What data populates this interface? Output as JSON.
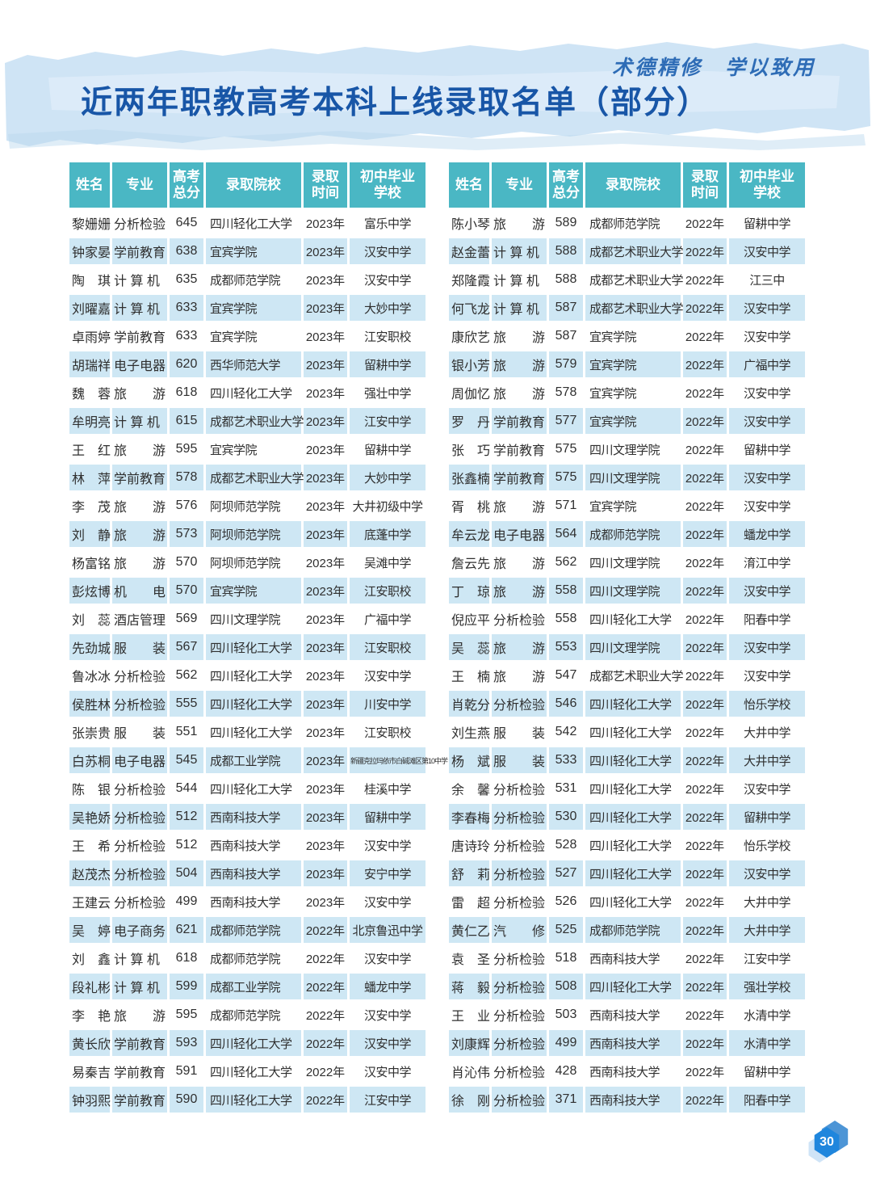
{
  "banner": {
    "slogan": "术德精修　学以致用",
    "title": "近两年职教高考本科上线录取名单（部分）"
  },
  "headers": [
    "姓名",
    "专业",
    "高考\n总分",
    "录取院校",
    "录取\n时间",
    "初中毕业\n学校"
  ],
  "left_table": {
    "rows": [
      [
        "黎姗姗",
        "分析检验",
        "645",
        "四川轻化工大学",
        "2023年",
        "富乐中学"
      ],
      [
        "钟家晏",
        "学前教育",
        "638",
        "宜宾学院",
        "2023年",
        "汉安中学"
      ],
      [
        "陶　琪",
        "计 算 机",
        "635",
        "成都师范学院",
        "2023年",
        "汉安中学"
      ],
      [
        "刘曜嘉",
        "计 算 机",
        "633",
        "宜宾学院",
        "2023年",
        "大妙中学"
      ],
      [
        "卓雨婷",
        "学前教育",
        "633",
        "宜宾学院",
        "2023年",
        "江安职校"
      ],
      [
        "胡瑞祥",
        "电子电器",
        "620",
        "西华师范大学",
        "2023年",
        "留耕中学"
      ],
      [
        "魏　蓉",
        "旅　　游",
        "618",
        "四川轻化工大学",
        "2023年",
        "强壮中学"
      ],
      [
        "牟明亮",
        "计 算 机",
        "615",
        "成都艺术职业大学",
        "2023年",
        "江安中学"
      ],
      [
        "王　红",
        "旅　　游",
        "595",
        "宜宾学院",
        "2023年",
        "留耕中学"
      ],
      [
        "林　萍",
        "学前教育",
        "578",
        "成都艺术职业大学",
        "2023年",
        "大妙中学"
      ],
      [
        "李　茂",
        "旅　　游",
        "576",
        "阿坝师范学院",
        "2023年",
        "大井初级中学"
      ],
      [
        "刘　静",
        "旅　　游",
        "573",
        "阿坝师范学院",
        "2023年",
        "底蓬中学"
      ],
      [
        "杨富铭",
        "旅　　游",
        "570",
        "阿坝师范学院",
        "2023年",
        "吴滩中学"
      ],
      [
        "彭炫博",
        "机　　电",
        "570",
        "宜宾学院",
        "2023年",
        "江安职校"
      ],
      [
        "刘　蕊",
        "酒店管理",
        "569",
        "四川文理学院",
        "2023年",
        "广福中学"
      ],
      [
        "先劲城",
        "服　　装",
        "567",
        "四川轻化工大学",
        "2023年",
        "江安职校"
      ],
      [
        "鲁冰冰",
        "分析检验",
        "562",
        "四川轻化工大学",
        "2023年",
        "汉安中学"
      ],
      [
        "侯胜林",
        "分析检验",
        "555",
        "四川轻化工大学",
        "2023年",
        "川安中学"
      ],
      [
        "张崇贵",
        "服　　装",
        "551",
        "四川轻化工大学",
        "2023年",
        "江安职校"
      ],
      [
        "白苏桐",
        "电子电器",
        "545",
        "成都工业学院",
        "2023年",
        "新疆克拉玛依市白碱滩区第10中学"
      ],
      [
        "陈　银",
        "分析检验",
        "544",
        "四川轻化工大学",
        "2023年",
        "桂溪中学"
      ],
      [
        "吴艳娇",
        "分析检验",
        "512",
        "西南科技大学",
        "2023年",
        "留耕中学"
      ],
      [
        "王　希",
        "分析检验",
        "512",
        "西南科技大学",
        "2023年",
        "汉安中学"
      ],
      [
        "赵茂杰",
        "分析检验",
        "504",
        "西南科技大学",
        "2023年",
        "安宁中学"
      ],
      [
        "王建云",
        "分析检验",
        "499",
        "西南科技大学",
        "2023年",
        "汉安中学"
      ],
      [
        "吴　婷",
        "电子商务",
        "621",
        "成都师范学院",
        "2022年",
        "北京鲁迅中学"
      ],
      [
        "刘　鑫",
        "计 算 机",
        "618",
        "成都师范学院",
        "2022年",
        "汉安中学"
      ],
      [
        "段礼彬",
        "计 算 机",
        "599",
        "成都工业学院",
        "2022年",
        "蟠龙中学"
      ],
      [
        "李　艳",
        "旅　　游",
        "595",
        "成都师范学院",
        "2022年",
        "汉安中学"
      ],
      [
        "黄长欣",
        "学前教育",
        "593",
        "四川轻化工大学",
        "2022年",
        "汉安中学"
      ],
      [
        "易秦吉",
        "学前教育",
        "591",
        "四川轻化工大学",
        "2022年",
        "汉安中学"
      ],
      [
        "钟羽熙",
        "学前教育",
        "590",
        "四川轻化工大学",
        "2022年",
        "江安中学"
      ]
    ]
  },
  "right_table": {
    "rows": [
      [
        "陈小琴",
        "旅　　游",
        "589",
        "成都师范学院",
        "2022年",
        "留耕中学"
      ],
      [
        "赵金蕾",
        "计 算 机",
        "588",
        "成都艺术职业大学",
        "2022年",
        "汉安中学"
      ],
      [
        "郑隆霞",
        "计 算 机",
        "588",
        "成都艺术职业大学",
        "2022年",
        "江三中"
      ],
      [
        "何飞龙",
        "计 算 机",
        "587",
        "成都艺术职业大学",
        "2022年",
        "汉安中学"
      ],
      [
        "康欣艺",
        "旅　　游",
        "587",
        "宜宾学院",
        "2022年",
        "汉安中学"
      ],
      [
        "银小芳",
        "旅　　游",
        "579",
        "宜宾学院",
        "2022年",
        "广福中学"
      ],
      [
        "周伽忆",
        "旅　　游",
        "578",
        "宜宾学院",
        "2022年",
        "汉安中学"
      ],
      [
        "罗　丹",
        "学前教育",
        "577",
        "宜宾学院",
        "2022年",
        "汉安中学"
      ],
      [
        "张　巧",
        "学前教育",
        "575",
        "四川文理学院",
        "2022年",
        "留耕中学"
      ],
      [
        "张鑫楠",
        "学前教育",
        "575",
        "四川文理学院",
        "2022年",
        "汉安中学"
      ],
      [
        "胥　桃",
        "旅　　游",
        "571",
        "宜宾学院",
        "2022年",
        "汉安中学"
      ],
      [
        "牟云龙",
        "电子电器",
        "564",
        "成都师范学院",
        "2022年",
        "蟠龙中学"
      ],
      [
        "詹云先",
        "旅　　游",
        "562",
        "四川文理学院",
        "2022年",
        "淯江中学"
      ],
      [
        "丁　琼",
        "旅　　游",
        "558",
        "四川文理学院",
        "2022年",
        "汉安中学"
      ],
      [
        "倪应平",
        "分析检验",
        "558",
        "四川轻化工大学",
        "2022年",
        "阳春中学"
      ],
      [
        "吴　蕊",
        "旅　　游",
        "553",
        "四川文理学院",
        "2022年",
        "汉安中学"
      ],
      [
        "王　楠",
        "旅　　游",
        "547",
        "成都艺术职业大学",
        "2022年",
        "汉安中学"
      ],
      [
        "肖乾分",
        "分析检验",
        "546",
        "四川轻化工大学",
        "2022年",
        "怡乐学校"
      ],
      [
        "刘生燕",
        "服　　装",
        "542",
        "四川轻化工大学",
        "2022年",
        "大井中学"
      ],
      [
        "杨　斌",
        "服　　装",
        "533",
        "四川轻化工大学",
        "2022年",
        "大井中学"
      ],
      [
        "余　馨",
        "分析检验",
        "531",
        "四川轻化工大学",
        "2022年",
        "汉安中学"
      ],
      [
        "李春梅",
        "分析检验",
        "530",
        "四川轻化工大学",
        "2022年",
        "留耕中学"
      ],
      [
        "唐诗玲",
        "分析检验",
        "528",
        "四川轻化工大学",
        "2022年",
        "怡乐学校"
      ],
      [
        "舒　莉",
        "分析检验",
        "527",
        "四川轻化工大学",
        "2022年",
        "汉安中学"
      ],
      [
        "雷　超",
        "分析检验",
        "526",
        "四川轻化工大学",
        "2022年",
        "大井中学"
      ],
      [
        "黄仁乙",
        "汽　　修",
        "525",
        "成都师范学院",
        "2022年",
        "大井中学"
      ],
      [
        "袁　圣",
        "分析检验",
        "518",
        "西南科技大学",
        "2022年",
        "江安中学"
      ],
      [
        "蒋　毅",
        "分析检验",
        "508",
        "四川轻化工大学",
        "2022年",
        "强壮学校"
      ],
      [
        "王　业",
        "分析检验",
        "503",
        "西南科技大学",
        "2022年",
        "水清中学"
      ],
      [
        "刘康辉",
        "分析检验",
        "499",
        "西南科技大学",
        "2022年",
        "水清中学"
      ],
      [
        "肖沁伟",
        "分析检验",
        "428",
        "西南科技大学",
        "2022年",
        "留耕中学"
      ],
      [
        "徐　刚",
        "分析检验",
        "371",
        "西南科技大学",
        "2022年",
        "阳春中学"
      ]
    ]
  },
  "footer": {
    "page_number": "30"
  },
  "colors": {
    "header_teal": "#4ab7c4",
    "row_stripe_blue": "#cee7f4",
    "title_blue": "#1856a7",
    "slogan_blue": "#2e6cb6",
    "badge_blue": "#1f86dd",
    "band_light_blue": "#cfe4f5"
  }
}
